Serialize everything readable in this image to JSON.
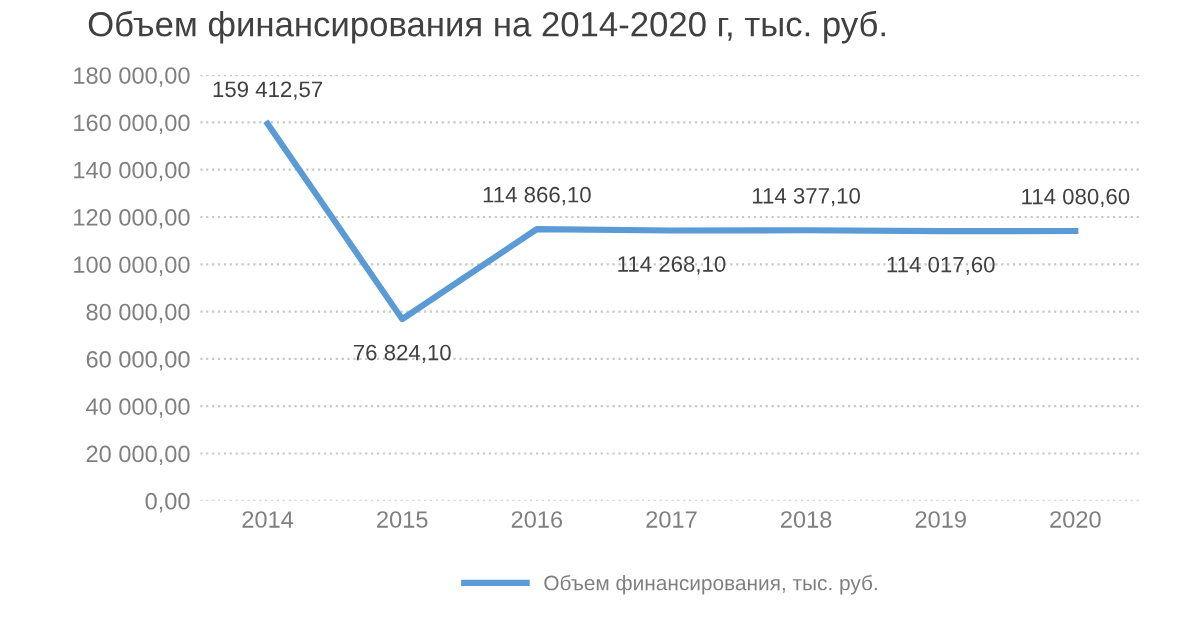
{
  "chart_data": {
    "type": "line",
    "title": "Объем финансирования на 2014-2020 г, тыс. руб.",
    "categories": [
      "2014",
      "2015",
      "2016",
      "2017",
      "2018",
      "2019",
      "2020"
    ],
    "series": [
      {
        "name": "Объем финансирования, тыс. руб.",
        "color": "#5b9bd5",
        "values": [
          159412.57,
          76824.1,
          114866.1,
          114268.1,
          114377.1,
          114017.6,
          114080.6
        ],
        "value_labels": [
          "159 412,57",
          "76 824,10",
          "114 866,10",
          "114 268,10",
          "114 377,10",
          "114 017,60",
          "114 080,60"
        ]
      }
    ],
    "ylim": [
      0,
      180000
    ],
    "yticks": [
      {
        "value": 0,
        "label": "0,00"
      },
      {
        "value": 20000,
        "label": "20 000,00"
      },
      {
        "value": 40000,
        "label": "40 000,00"
      },
      {
        "value": 60000,
        "label": "60 000,00"
      },
      {
        "value": 80000,
        "label": "80 000,00"
      },
      {
        "value": 100000,
        "label": "100 000,00"
      },
      {
        "value": 120000,
        "label": "120 000,00"
      },
      {
        "value": 140000,
        "label": "140 000,00"
      },
      {
        "value": 160000,
        "label": "160 000,00"
      },
      {
        "value": 180000,
        "label": "180 000,00"
      }
    ],
    "grid": "y",
    "legend": "bottom",
    "marker": "none",
    "line_style": "solid"
  }
}
